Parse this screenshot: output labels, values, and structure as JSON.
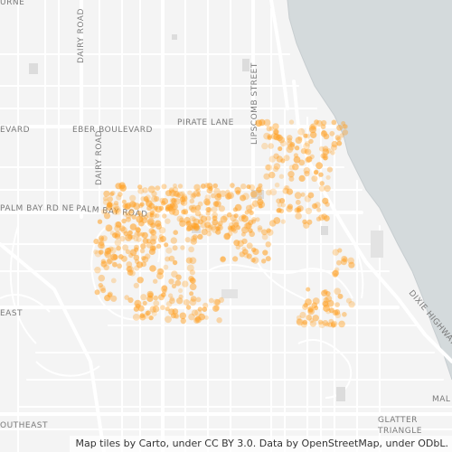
{
  "map": {
    "labels": {
      "urne": "URNE",
      "dairy_road_north": "DAIRY ROAD",
      "dairy_road_south": "DAIRY ROAD",
      "lipscomb_street": "LIPSCOMB STREET",
      "pirate_lane": "PIRATE LANE",
      "eber_boulevard": "EBER BOULEVARD",
      "evard": "EVARD",
      "palm_bay_rd_ne": "PALM BAY RD NE",
      "palm_bay_road": "PALM BAY ROAD",
      "dixie_highway": "DIXIE HIGHWAY",
      "mal": "MAL",
      "glatter": "GLATTER",
      "triangle": "TRIANGLE",
      "southeast": "OUTHEAST",
      "east": "EAST"
    },
    "colors": {
      "land": "#f4f4f4",
      "water": "#d4dadc",
      "road": "#ffffff",
      "building": "#d9d9d9",
      "point": "#ffa126"
    },
    "attribution": "Map tiles by Carto, under CC BY 3.0. Data by OpenStreetMap, under ODbL."
  }
}
